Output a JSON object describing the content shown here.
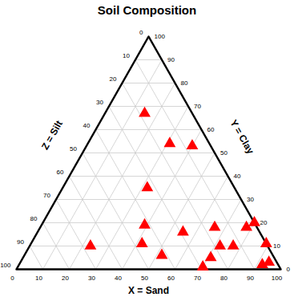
{
  "chart_data": {
    "type": "ternary",
    "title": "Soil Composition",
    "x_label": "X = Sand",
    "y_label": "Y = Clay",
    "z_label": "Z = Silt",
    "xlim": [
      0,
      100
    ],
    "ylim": [
      0,
      100
    ],
    "zlim": [
      0,
      100
    ],
    "xticks": [
      0,
      10,
      20,
      30,
      40,
      50,
      60,
      70,
      80,
      90,
      100
    ],
    "yticks": [
      0,
      10,
      20,
      30,
      40,
      50,
      60,
      70,
      80,
      90,
      100
    ],
    "zticks": [
      0,
      10,
      20,
      30,
      40,
      50,
      60,
      70,
      80,
      90,
      100
    ],
    "grid": true,
    "color": "#ff0000",
    "marker": "triangle",
    "x": [
      15,
      31,
      40,
      32,
      39,
      23,
      42,
      52,
      55,
      70,
      71,
      66,
      72,
      77,
      78,
      80,
      89,
      92,
      94
    ],
    "y": [
      67,
      54,
      53,
      35,
      19,
      10,
      11,
      6,
      16,
      1,
      5,
      18,
      10,
      10,
      18,
      20,
      11,
      2,
      3
    ],
    "z": [
      18,
      15,
      7,
      33,
      42,
      67,
      47,
      42,
      29,
      29,
      24,
      16,
      18,
      13,
      4,
      0,
      0,
      6,
      3
    ]
  }
}
